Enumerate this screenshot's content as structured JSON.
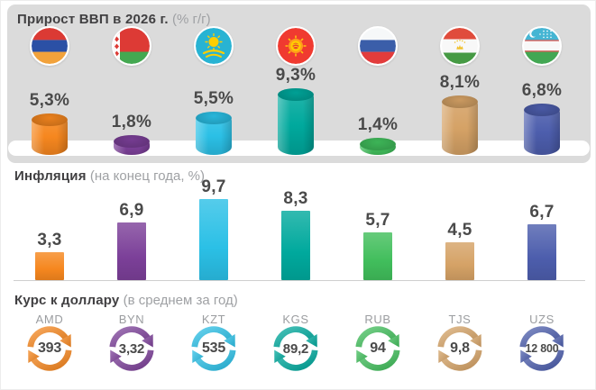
{
  "sections": {
    "gdp": {
      "title": "Прирост ВВП в 2026 г.",
      "subtitle": "(% г/г)"
    },
    "inflation": {
      "title": "Инфляция",
      "subtitle": "(на конец года, %)"
    },
    "fx": {
      "title": "Курс к доллару",
      "subtitle": "(в среднем за год)"
    }
  },
  "countries": [
    {
      "id": "armenia",
      "name": "Армения",
      "flag_icon": "flag-armenia",
      "color": "#F6871F",
      "gdp": "5,3%",
      "inflation": "3,3",
      "currency_code": "AMD",
      "fx_rate": "393"
    },
    {
      "id": "belarus",
      "name": "Беларусь",
      "flag_icon": "flag-belarus",
      "color": "#7C4099",
      "gdp": "1,8%",
      "inflation": "6,9",
      "currency_code": "BYN",
      "fx_rate": "3,32"
    },
    {
      "id": "kazakhstan",
      "name": "Казахстан",
      "flag_icon": "flag-kazakhstan",
      "color": "#2BC0E6",
      "gdp": "5,5%",
      "inflation": "9,7",
      "currency_code": "KZT",
      "fx_rate": "535"
    },
    {
      "id": "kyrgyzstan",
      "name": "Кыргызстан",
      "flag_icon": "flag-kyrgyzstan",
      "color": "#00A99D",
      "gdp": "9,3%",
      "inflation": "8,3",
      "currency_code": "KGS",
      "fx_rate": "89,2"
    },
    {
      "id": "russia",
      "name": "Россия",
      "flag_icon": "flag-russia",
      "color": "#41BE5C",
      "gdp": "1,4%",
      "inflation": "5,7",
      "currency_code": "RUB",
      "fx_rate": "94"
    },
    {
      "id": "tajikistan",
      "name": "Таджикистан",
      "flag_icon": "flag-tajikistan",
      "color": "#D5A266",
      "gdp": "8,1%",
      "inflation": "4,5",
      "currency_code": "TJS",
      "fx_rate": "9,8"
    },
    {
      "id": "uzbekistan",
      "name": "Узбекистан",
      "flag_icon": "flag-uzbekistan",
      "color": "#4D5EAD",
      "gdp": "6,8%",
      "inflation": "6,7",
      "currency_code": "UZS",
      "fx_rate": "12 800"
    }
  ],
  "chart_data": [
    {
      "type": "bar",
      "variant": "cylinder-3d",
      "title": "Прирост ВВП в 2026 г. (% г/г)",
      "categories": [
        "Армения",
        "Беларусь",
        "Казахстан",
        "Кыргызстан",
        "Россия",
        "Таджикистан",
        "Узбекистан"
      ],
      "values": [
        5.3,
        1.8,
        5.5,
        9.3,
        1.4,
        8.1,
        6.8
      ],
      "labels": [
        "5,3%",
        "1,8%",
        "5,5%",
        "9,3%",
        "1,4%",
        "8,1%",
        "6,8%"
      ],
      "unit": "%",
      "ylim": [
        0,
        10
      ],
      "grid": false,
      "legend": false
    },
    {
      "type": "bar",
      "title": "Инфляция (на конец года, %)",
      "categories": [
        "Армения",
        "Беларусь",
        "Казахстан",
        "Кыргызстан",
        "Россия",
        "Таджикистан",
        "Узбекистан"
      ],
      "values": [
        3.3,
        6.9,
        9.7,
        8.3,
        5.7,
        4.5,
        6.7
      ],
      "labels": [
        "3,3",
        "6,9",
        "9,7",
        "8,3",
        "5,7",
        "4,5",
        "6,7"
      ],
      "unit": "%",
      "ylim": [
        0,
        10
      ],
      "grid": false,
      "legend": false
    },
    {
      "type": "table",
      "title": "Курс к доллару (в среднем за год)",
      "categories": [
        "AMD",
        "BYN",
        "KZT",
        "KGS",
        "RUB",
        "TJS",
        "UZS"
      ],
      "values": [
        393,
        3.32,
        535,
        89.2,
        94,
        9.8,
        12800
      ],
      "labels": [
        "393",
        "3,32",
        "535",
        "89,2",
        "94",
        "9,8",
        "12 800"
      ]
    }
  ],
  "colors": {
    "panel_bg": "#DBDBDB",
    "page_bg": "#FFFFFF",
    "title_text": "#414042",
    "subtitle_text": "#9FA1A4",
    "value_text": "#4A4A4A",
    "currency_code_text": "#9B9DA0",
    "baseline": "#CFCFCF",
    "floor": "#FFFFFF"
  }
}
